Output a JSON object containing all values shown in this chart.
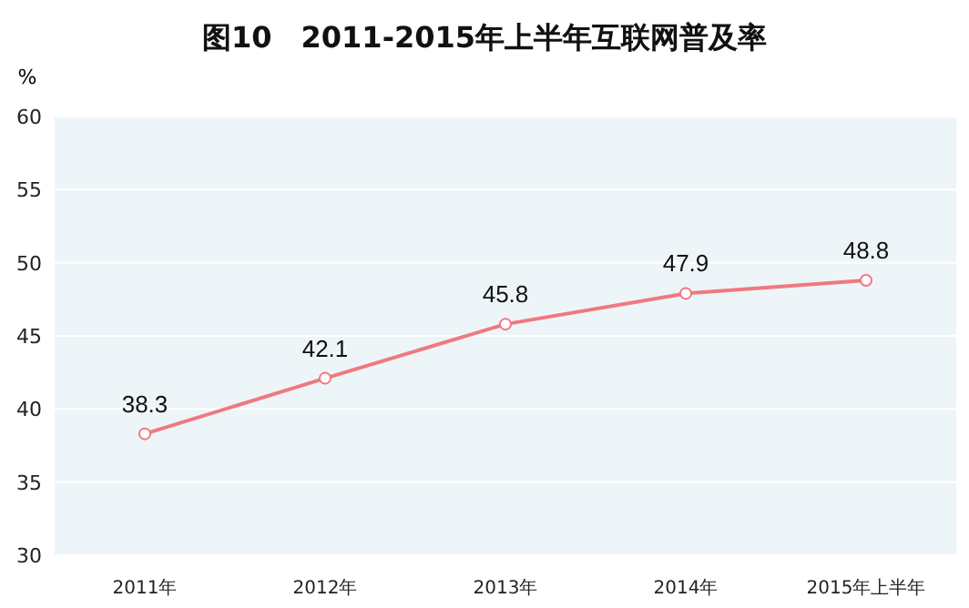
{
  "chart_data": {
    "type": "line",
    "title": "图10　2011-2015年上半年互联网普及率",
    "ylabel": "%",
    "categories": [
      "2011年",
      "2012年",
      "2013年",
      "2014年",
      "2015年上半年"
    ],
    "series": [
      {
        "color": "#f07880",
        "values": [
          38.3,
          42.1,
          45.8,
          47.9,
          48.8
        ]
      }
    ],
    "ylim": [
      30,
      60
    ],
    "yticks": [
      30,
      35,
      40,
      45,
      50,
      55,
      60
    ],
    "grid": "y",
    "data_labels": true,
    "marker": "circle",
    "line_style": "solid"
  }
}
